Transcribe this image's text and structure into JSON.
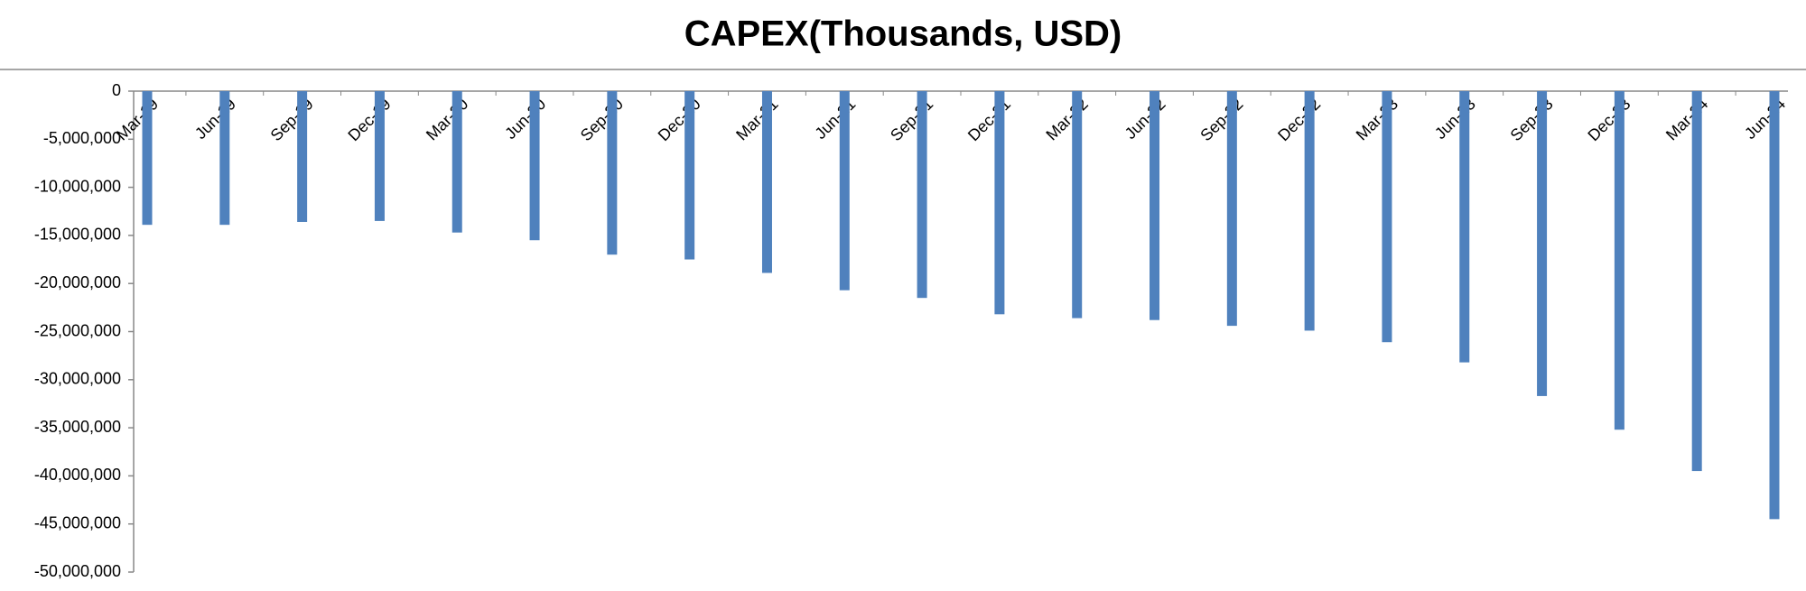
{
  "chart_data": {
    "type": "bar",
    "title": "CAPEX(Thousands, USD)",
    "categories": [
      "Mar-19",
      "Jun-19",
      "Sep-19",
      "Dec-19",
      "Mar-20",
      "Jun-20",
      "Sep-20",
      "Dec-20",
      "Mar-21",
      "Jun-21",
      "Sep-21",
      "Dec-21",
      "Mar-22",
      "Jun-22",
      "Sep-22",
      "Dec-22",
      "Mar-23",
      "Jun-23",
      "Sep-23",
      "Dec-23",
      "Mar-24",
      "Jun-24"
    ],
    "values": [
      -13900000,
      -13900000,
      -13600000,
      -13500000,
      -14700000,
      -15500000,
      -17000000,
      -17500000,
      -18900000,
      -20700000,
      -21500000,
      -23200000,
      -23600000,
      -23800000,
      -24400000,
      -24900000,
      -26100000,
      -28200000,
      -31700000,
      -35200000,
      -39500000,
      -44500000
    ],
    "color": "#4f81bd",
    "ylim": [
      -50000000,
      0
    ],
    "yticks": [
      0,
      {
        "value": -5000000,
        "label": "-5,000,000"
      },
      {
        "value": -10000000,
        "label": "-10,000,000"
      },
      {
        "value": -15000000,
        "label": "-15,000,000"
      },
      {
        "value": -20000000,
        "label": "-20,000,000"
      },
      {
        "value": -25000000,
        "label": "-25,000,000"
      },
      {
        "value": -30000000,
        "label": "-30,000,000"
      },
      {
        "value": -35000000,
        "label": "-35,000,000"
      },
      {
        "value": -40000000,
        "label": "-40,000,000"
      },
      {
        "value": -45000000,
        "label": "-45,000,000"
      },
      {
        "value": -50000000,
        "label": "-50,000,000"
      }
    ],
    "grid": false
  }
}
